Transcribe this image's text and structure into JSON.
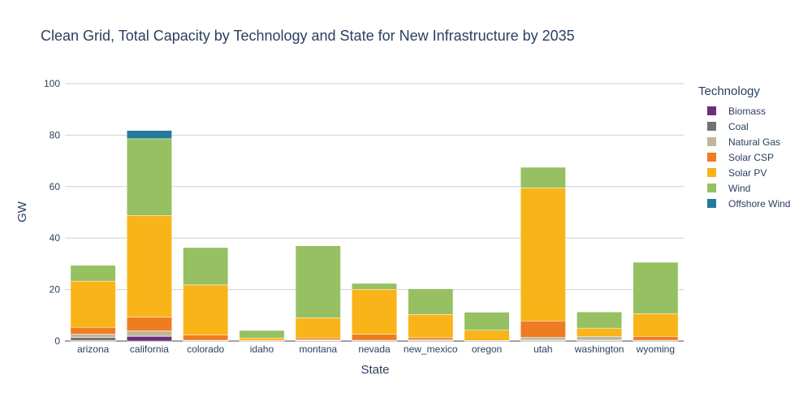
{
  "chart_data": {
    "type": "bar",
    "stacked": true,
    "title": "Clean Grid, Total Capacity by Technology and State for New Infrastructure by 2035",
    "xlabel": "State",
    "ylabel": "GW",
    "ylim": [
      0,
      100
    ],
    "yticks": [
      0,
      20,
      40,
      60,
      80,
      100
    ],
    "grid": true,
    "legend_title": "Technology",
    "legend_position": "right",
    "categories": [
      "arizona",
      "california",
      "colorado",
      "idaho",
      "montana",
      "nevada",
      "new_mexico",
      "oregon",
      "utah",
      "washington",
      "wyoming"
    ],
    "series": [
      {
        "name": "Biomass",
        "color": "#6b2f75",
        "values": [
          0.2,
          1.8,
          0.1,
          0.0,
          0.1,
          0.0,
          0.0,
          0.0,
          0.2,
          0.2,
          0.0
        ]
      },
      {
        "name": "Coal",
        "color": "#727272",
        "values": [
          1.2,
          0.3,
          0.1,
          0.0,
          0.1,
          0.0,
          0.1,
          0.0,
          0.3,
          0.3,
          0.0
        ]
      },
      {
        "name": "Natural Gas",
        "color": "#c5b594",
        "values": [
          1.3,
          1.9,
          0.1,
          0.2,
          0.3,
          0.3,
          0.4,
          0.2,
          1.0,
          1.3,
          0.3
        ]
      },
      {
        "name": "Solar CSP",
        "color": "#ef7c21",
        "values": [
          2.6,
          5.3,
          2.0,
          0.0,
          0.7,
          2.3,
          0.8,
          0.0,
          6.3,
          0.0,
          1.5
        ]
      },
      {
        "name": "Solar PV",
        "color": "#f8b418",
        "values": [
          18.0,
          39.5,
          19.5,
          1.0,
          7.8,
          17.5,
          9.0,
          4.0,
          51.7,
          3.2,
          8.8
        ]
      },
      {
        "name": "Wind",
        "color": "#96c062",
        "values": [
          6.1,
          29.8,
          14.5,
          2.9,
          28.0,
          2.3,
          10.0,
          7.0,
          8.0,
          6.3,
          20.0
        ]
      },
      {
        "name": "Offshore Wind",
        "color": "#257a9b",
        "values": [
          0.0,
          3.2,
          0.0,
          0.0,
          0.0,
          0.0,
          0.0,
          0.0,
          0.0,
          0.0,
          0.0
        ]
      }
    ]
  }
}
